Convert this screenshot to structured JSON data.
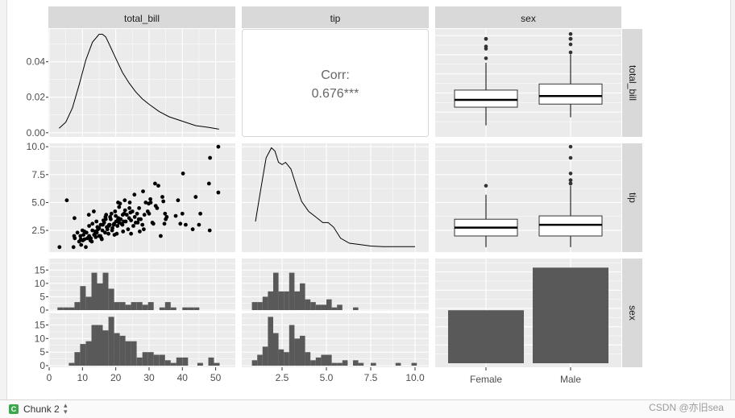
{
  "bottom_bar": {
    "chunk_icon": "C",
    "chunk_label": "Chunk 2",
    "chunk_arrows": "⬍"
  },
  "watermark": "CSDN @亦旧sea",
  "chart_data": {
    "type": "pairs",
    "variables": [
      "total_bill",
      "tip",
      "sex"
    ],
    "strip_labels": {
      "top": [
        "total_bill",
        "tip",
        "sex"
      ],
      "right": [
        "total_bill",
        "tip",
        "sex"
      ]
    },
    "correlation": {
      "label": "Corr:",
      "value": "0.676***"
    },
    "axes": {
      "total_bill_y": {
        "range": [
          -0.001,
          0.058
        ],
        "ticks": [
          0.0,
          0.02,
          0.04
        ],
        "tick_labels": [
          "0.00",
          "0.02",
          "0.04"
        ]
      },
      "tip_y": {
        "range": [
          0.7,
          10.3
        ],
        "ticks": [
          2.5,
          5.0,
          7.5,
          10.0
        ],
        "tick_labels": [
          "2.5",
          "5.0",
          "7.5",
          "10.0"
        ]
      },
      "count_y": {
        "range": [
          0,
          19
        ],
        "ticks": [
          0,
          5,
          10,
          15
        ],
        "tick_labels": [
          "0",
          "5",
          "10",
          "15"
        ]
      },
      "total_bill_x": {
        "range": [
          0,
          53
        ],
        "ticks": [
          0,
          10,
          20,
          30,
          40,
          50
        ],
        "tick_labels": [
          "0",
          "10",
          "20",
          "30",
          "40",
          "50"
        ]
      },
      "tip_x": {
        "range": [
          0.5,
          10.5
        ],
        "ticks": [
          2.5,
          5.0,
          7.5,
          10.0
        ],
        "tick_labels": [
          "2.5",
          "5.0",
          "7.5",
          "10.0"
        ]
      },
      "sex_x": {
        "categories": [
          "Female",
          "Male"
        ]
      }
    },
    "density_total_bill": {
      "x": [
        3,
        5,
        7,
        9,
        11,
        13,
        15,
        16,
        17,
        18,
        20,
        22,
        24,
        26,
        28,
        30,
        33,
        36,
        40,
        44,
        48,
        51
      ],
      "y": [
        0.0025,
        0.006,
        0.014,
        0.027,
        0.041,
        0.051,
        0.0555,
        0.0555,
        0.054,
        0.05,
        0.042,
        0.034,
        0.028,
        0.023,
        0.019,
        0.016,
        0.012,
        0.009,
        0.0065,
        0.004,
        0.003,
        0.002
      ]
    },
    "density_tip": {
      "x": [
        1.0,
        1.3,
        1.6,
        1.9,
        2.1,
        2.3,
        2.5,
        2.7,
        3.0,
        3.3,
        3.6,
        4.0,
        4.4,
        4.8,
        5.1,
        5.4,
        5.8,
        6.3,
        6.8,
        7.5,
        8.2,
        9.0,
        10.0
      ],
      "y": [
        3.3,
        6.2,
        9.0,
        9.9,
        9.6,
        8.6,
        8.4,
        8.6,
        8.0,
        6.5,
        5.1,
        4.2,
        3.7,
        3.2,
        3.2,
        2.8,
        1.8,
        1.35,
        1.25,
        1.1,
        1.05,
        1.05,
        1.05
      ]
    },
    "scatter_total_bill_tip": {
      "x": [
        3.1,
        7.3,
        9.6,
        11,
        12.8,
        5.3,
        7.7,
        9.4,
        10.1,
        10.3,
        10.6,
        11.2,
        12.0,
        12.5,
        13.0,
        13.8,
        14.5,
        15.0,
        15.5,
        16.0,
        16.5,
        17.0,
        17.5,
        18.0,
        18.5,
        19.0,
        19.5,
        20.0,
        20.5,
        21.0,
        21.5,
        22.0,
        22.5,
        23.0,
        24.0,
        25.0,
        26.0,
        27.0,
        28.0,
        29.0,
        30.0,
        31.0,
        32.0,
        34.0,
        35.0,
        38.0,
        40.0,
        41.0,
        44.0,
        45.0,
        48.0,
        48.3,
        50.8,
        7.5,
        8.5,
        9.0,
        10.0,
        11.5,
        12.0,
        13.0,
        13.5,
        14.0,
        14.2,
        15.0,
        15.4,
        16.3,
        16.8,
        17.3,
        17.8,
        18.3,
        18.9,
        19.4,
        19.8,
        20.3,
        20.8,
        21.3,
        21.7,
        22.2,
        22.8,
        23.3,
        23.7,
        24.2,
        24.6,
        25.3,
        25.6,
        26.4,
        26.9,
        27.2,
        28.2,
        28.6,
        29.6,
        30.4,
        31.3,
        32.4,
        32.8,
        34.3,
        34.8,
        38.7,
        39.4,
        40.2,
        43.1,
        45.4,
        48.2,
        50.8,
        7.6,
        9.5,
        13.4,
        14.7,
        17.9,
        20.7,
        22.1,
        24.1,
        25.7,
        28.4,
        31.8,
        34.6,
        12.4,
        13.9,
        16.1,
        18.7,
        20.1,
        22.7,
        24.6,
        26.6,
        29.9,
        35.3,
        10.6,
        11.9,
        14.3,
        15.8,
        16.9,
        18.2,
        19.6,
        21.0,
        22.4,
        24.4,
        27.5,
        30.5,
        33.5,
        15.7,
        17.1,
        20.7
      ],
      "y": [
        1.0,
        1.0,
        1.2,
        1.0,
        1.5,
        5.2,
        1.8,
        2.0,
        1.6,
        2.1,
        1.7,
        2.3,
        2.0,
        1.8,
        2.5,
        2.2,
        2.8,
        2.0,
        3.0,
        2.5,
        3.2,
        3.5,
        2.6,
        3.0,
        3.5,
        2.7,
        3.1,
        3.8,
        2.9,
        3.2,
        3.5,
        3.0,
        4.0,
        3.3,
        3.6,
        4.2,
        3.2,
        4.5,
        3.0,
        5.0,
        4.0,
        3.2,
        4.7,
        5.5,
        3.5,
        3.8,
        4.0,
        3.0,
        5.5,
        3.0,
        6.7,
        9.0,
        10.0,
        2.0,
        2.3,
        1.5,
        2.5,
        1.8,
        2.9,
        3.1,
        2.1,
        1.9,
        3.3,
        2.7,
        2.0,
        3.4,
        2.3,
        2.8,
        2.2,
        3.7,
        2.5,
        3.0,
        4.2,
        2.2,
        3.6,
        4.9,
        3.1,
        2.4,
        4.3,
        3.9,
        2.6,
        5.0,
        3.4,
        2.9,
        5.7,
        4.0,
        3.5,
        2.4,
        6.0,
        3.9,
        4.2,
        5.3,
        3.1,
        4.5,
        6.5,
        5.1,
        4.0,
        5.2,
        3.1,
        7.6,
        2.6,
        4.0,
        2.5,
        5.9,
        3.6,
        1.7,
        4.2,
        2.6,
        2.9,
        5.0,
        3.9,
        4.5,
        3.7,
        2.6,
        6.7,
        3.1,
        1.6,
        2.4,
        3.0,
        4.0,
        3.3,
        5.2,
        2.2,
        3.2,
        4.9,
        3.7,
        2.4,
        3.9,
        2.3,
        1.7,
        3.7,
        3.0,
        2.1,
        4.6,
        3.3,
        4.1,
        3.5,
        5.0,
        2.0,
        1.8,
        3.9,
        3.5
      ],
      "xlim": [
        0,
        53
      ],
      "ylim": [
        0.7,
        10.3
      ]
    },
    "boxplot_sex_total_bill": {
      "categories": [
        "Female",
        "Male"
      ],
      "min": [
        3.1,
        7.3
      ],
      "q1": [
        12.6,
        14.2
      ],
      "median": [
        16.4,
        18.4
      ],
      "q3": [
        21.5,
        24.7
      ],
      "max": [
        35.8,
        40.2
      ],
      "outliers": [
        [
          38.1,
          43.1,
          44.3,
          48.2,
          48.3
        ],
        [
          41.2,
          45.4,
          48.2,
          48.3,
          48.3,
          50.8
        ]
      ],
      "ylim": [
        0,
        53
      ]
    },
    "boxplot_sex_tip": {
      "categories": [
        "Female",
        "Male"
      ],
      "min": [
        1.0,
        1.0
      ],
      "q1": [
        2.0,
        2.0
      ],
      "median": [
        2.75,
        3.0
      ],
      "q3": [
        3.5,
        3.8
      ],
      "max": [
        5.7,
        6.5
      ],
      "outliers": [
        [
          6.5
        ],
        [
          6.7,
          7.0,
          7.6,
          9.0,
          10.0,
          6.7,
          7.0
        ]
      ],
      "ylim": [
        0.7,
        10.3
      ]
    },
    "hist_total_bill_female": {
      "bins": [
        {
          "x0": 2.5,
          "x1": 4.2,
          "count": 1
        },
        {
          "x0": 4.2,
          "x1": 5.9,
          "count": 1
        },
        {
          "x0": 5.9,
          "x1": 7.6,
          "count": 1
        },
        {
          "x0": 7.6,
          "x1": 9.3,
          "count": 3
        },
        {
          "x0": 9.3,
          "x1": 11.0,
          "count": 9
        },
        {
          "x0": 11.0,
          "x1": 12.7,
          "count": 5
        },
        {
          "x0": 12.7,
          "x1": 14.4,
          "count": 14
        },
        {
          "x0": 14.4,
          "x1": 16.1,
          "count": 10
        },
        {
          "x0": 16.1,
          "x1": 17.8,
          "count": 14
        },
        {
          "x0": 17.8,
          "x1": 19.5,
          "count": 8
        },
        {
          "x0": 19.5,
          "x1": 21.2,
          "count": 3
        },
        {
          "x0": 21.2,
          "x1": 22.9,
          "count": 3
        },
        {
          "x0": 22.9,
          "x1": 24.6,
          "count": 2
        },
        {
          "x0": 24.6,
          "x1": 26.3,
          "count": 3
        },
        {
          "x0": 26.3,
          "x1": 28.0,
          "count": 3
        },
        {
          "x0": 28.0,
          "x1": 29.7,
          "count": 2
        },
        {
          "x0": 29.7,
          "x1": 31.4,
          "count": 3
        },
        {
          "x0": 33.1,
          "x1": 34.8,
          "count": 1
        },
        {
          "x0": 34.8,
          "x1": 36.5,
          "count": 3
        },
        {
          "x0": 36.5,
          "x1": 38.2,
          "count": 1
        },
        {
          "x0": 40.0,
          "x1": 41.7,
          "count": 1
        },
        {
          "x0": 41.7,
          "x1": 43.4,
          "count": 1
        },
        {
          "x0": 43.4,
          "x1": 45.1,
          "count": 1
        }
      ]
    },
    "hist_total_bill_male": {
      "bins": [
        {
          "x0": 5.9,
          "x1": 7.6,
          "count": 1
        },
        {
          "x0": 7.6,
          "x1": 9.3,
          "count": 5
        },
        {
          "x0": 9.3,
          "x1": 11.0,
          "count": 8
        },
        {
          "x0": 11.0,
          "x1": 12.7,
          "count": 9
        },
        {
          "x0": 12.7,
          "x1": 14.4,
          "count": 15
        },
        {
          "x0": 14.4,
          "x1": 16.1,
          "count": 15
        },
        {
          "x0": 16.1,
          "x1": 17.8,
          "count": 13
        },
        {
          "x0": 17.8,
          "x1": 19.5,
          "count": 18
        },
        {
          "x0": 19.5,
          "x1": 21.2,
          "count": 12
        },
        {
          "x0": 21.2,
          "x1": 22.9,
          "count": 11
        },
        {
          "x0": 22.9,
          "x1": 24.6,
          "count": 9
        },
        {
          "x0": 24.6,
          "x1": 26.3,
          "count": 9
        },
        {
          "x0": 26.3,
          "x1": 28.0,
          "count": 3
        },
        {
          "x0": 28.0,
          "x1": 29.7,
          "count": 5
        },
        {
          "x0": 29.7,
          "x1": 31.4,
          "count": 5
        },
        {
          "x0": 31.4,
          "x1": 33.1,
          "count": 4
        },
        {
          "x0": 33.1,
          "x1": 34.8,
          "count": 4
        },
        {
          "x0": 34.8,
          "x1": 36.5,
          "count": 2
        },
        {
          "x0": 36.5,
          "x1": 38.2,
          "count": 1
        },
        {
          "x0": 38.2,
          "x1": 40.0,
          "count": 3
        },
        {
          "x0": 40.0,
          "x1": 41.7,
          "count": 3
        },
        {
          "x0": 44.5,
          "x1": 46.2,
          "count": 1
        },
        {
          "x0": 47.8,
          "x1": 49.5,
          "count": 3
        },
        {
          "x0": 49.5,
          "x1": 51.2,
          "count": 1
        }
      ]
    },
    "hist_tip_female": {
      "bins": [
        {
          "x0": 0.8,
          "x1": 1.1,
          "count": 3
        },
        {
          "x0": 1.1,
          "x1": 1.4,
          "count": 3
        },
        {
          "x0": 1.4,
          "x1": 1.7,
          "count": 5
        },
        {
          "x0": 1.7,
          "x1": 2.0,
          "count": 7
        },
        {
          "x0": 2.0,
          "x1": 2.3,
          "count": 14
        },
        {
          "x0": 2.3,
          "x1": 2.6,
          "count": 7
        },
        {
          "x0": 2.6,
          "x1": 2.9,
          "count": 7
        },
        {
          "x0": 2.9,
          "x1": 3.2,
          "count": 14
        },
        {
          "x0": 3.2,
          "x1": 3.5,
          "count": 7
        },
        {
          "x0": 3.5,
          "x1": 3.8,
          "count": 10
        },
        {
          "x0": 3.8,
          "x1": 4.1,
          "count": 4
        },
        {
          "x0": 4.1,
          "x1": 4.4,
          "count": 3
        },
        {
          "x0": 4.4,
          "x1": 4.7,
          "count": 2
        },
        {
          "x0": 4.7,
          "x1": 5.0,
          "count": 2
        },
        {
          "x0": 5.0,
          "x1": 5.3,
          "count": 4
        },
        {
          "x0": 5.3,
          "x1": 5.6,
          "count": 1
        },
        {
          "x0": 5.6,
          "x1": 5.9,
          "count": 2
        },
        {
          "x0": 6.5,
          "x1": 6.8,
          "count": 1
        }
      ]
    },
    "hist_tip_male": {
      "bins": [
        {
          "x0": 0.8,
          "x1": 1.1,
          "count": 2
        },
        {
          "x0": 1.1,
          "x1": 1.4,
          "count": 4
        },
        {
          "x0": 1.4,
          "x1": 1.7,
          "count": 7
        },
        {
          "x0": 1.7,
          "x1": 2.0,
          "count": 18
        },
        {
          "x0": 2.0,
          "x1": 2.3,
          "count": 12
        },
        {
          "x0": 2.3,
          "x1": 2.6,
          "count": 6
        },
        {
          "x0": 2.6,
          "x1": 2.9,
          "count": 5
        },
        {
          "x0": 2.9,
          "x1": 3.2,
          "count": 15
        },
        {
          "x0": 3.2,
          "x1": 3.5,
          "count": 10
        },
        {
          "x0": 3.5,
          "x1": 3.8,
          "count": 11
        },
        {
          "x0": 3.8,
          "x1": 4.1,
          "count": 5
        },
        {
          "x0": 4.1,
          "x1": 4.4,
          "count": 2
        },
        {
          "x0": 4.4,
          "x1": 4.7,
          "count": 3
        },
        {
          "x0": 4.7,
          "x1": 5.0,
          "count": 4
        },
        {
          "x0": 5.0,
          "x1": 5.3,
          "count": 4
        },
        {
          "x0": 5.3,
          "x1": 5.6,
          "count": 1
        },
        {
          "x0": 5.6,
          "x1": 5.9,
          "count": 1
        },
        {
          "x0": 5.9,
          "x1": 6.2,
          "count": 2
        },
        {
          "x0": 6.5,
          "x1": 6.8,
          "count": 2
        },
        {
          "x0": 6.8,
          "x1": 7.1,
          "count": 1
        },
        {
          "x0": 7.5,
          "x1": 7.8,
          "count": 1
        },
        {
          "x0": 8.9,
          "x1": 9.2,
          "count": 1
        },
        {
          "x0": 9.8,
          "x1": 10.1,
          "count": 1
        }
      ]
    },
    "bar_sex": {
      "categories": [
        "Female",
        "Male"
      ],
      "counts": [
        87,
        157
      ],
      "ylim": [
        0,
        172
      ]
    },
    "colors": {
      "panel_bg": "#ebebeb",
      "grid": "#ffffff",
      "strip_bg": "#d9d9d9",
      "bar_fill": "#595959",
      "ink": "#000000",
      "axis_text": "#4d4d4d",
      "corr_text": "#666666"
    }
  }
}
